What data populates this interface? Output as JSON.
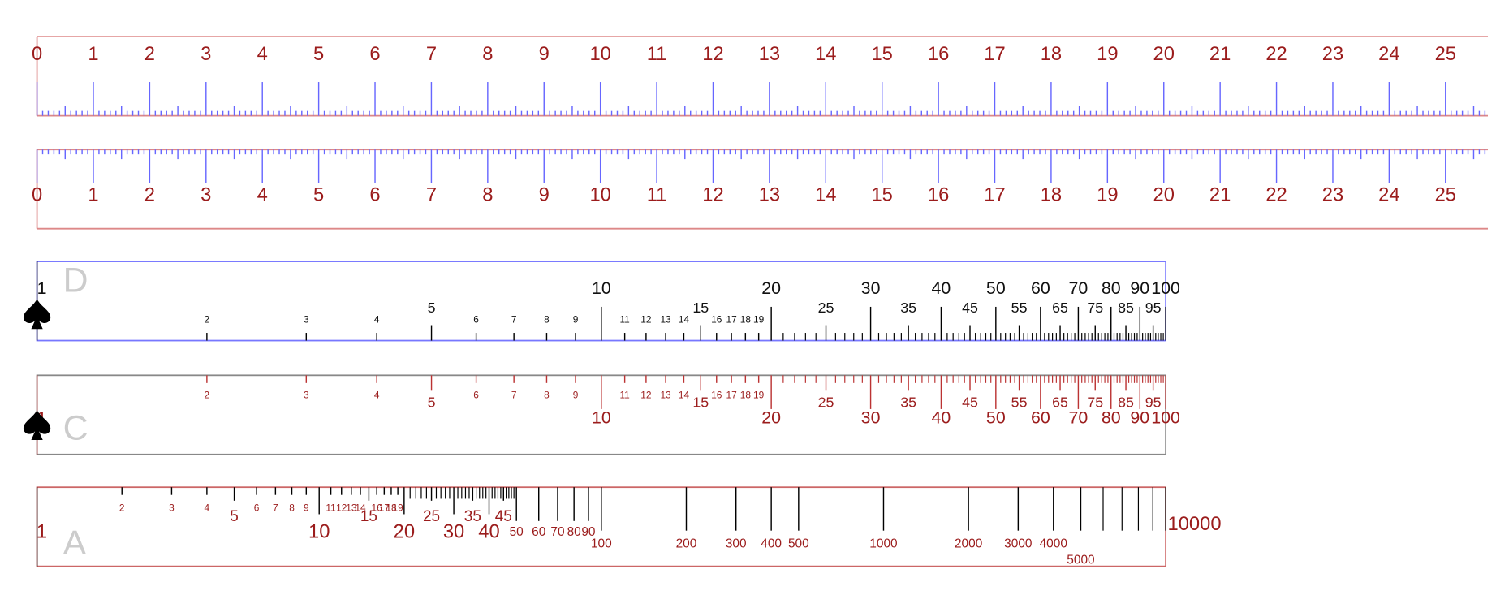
{
  "rulers": [
    {
      "labels": [
        "0",
        "1",
        "2",
        "3",
        "4",
        "5",
        "6",
        "7",
        "8",
        "9",
        "10",
        "11",
        "12",
        "13",
        "14",
        "15",
        "16",
        "17",
        "18",
        "19",
        "20",
        "21",
        "22",
        "23",
        "24",
        "25"
      ]
    },
    {
      "labels": [
        "0",
        "1",
        "2",
        "3",
        "4",
        "5",
        "6",
        "7",
        "8",
        "9",
        "10",
        "11",
        "12",
        "13",
        "14",
        "15",
        "16",
        "17",
        "18",
        "19",
        "20",
        "21",
        "22",
        "23",
        "24",
        "25"
      ]
    }
  ],
  "scales": [
    {
      "letter": "D",
      "large": [
        "1",
        "10",
        "20",
        "30",
        "40",
        "50",
        "60",
        "70",
        "80",
        "90",
        "100"
      ],
      "medium": [
        "5",
        "15",
        "25",
        "35",
        "45",
        "55",
        "65",
        "75",
        "85",
        "95"
      ],
      "small": [
        "2",
        "3",
        "4",
        "6",
        "7",
        "8",
        "9",
        "11",
        "12",
        "13",
        "14",
        "16",
        "17",
        "18",
        "19"
      ]
    },
    {
      "letter": "C",
      "large": [
        "1",
        "10",
        "20",
        "30",
        "40",
        "50",
        "60",
        "70",
        "80",
        "90",
        "100"
      ],
      "medium": [
        "5",
        "15",
        "25",
        "35",
        "45",
        "55",
        "65",
        "75",
        "85",
        "95"
      ],
      "small": [
        "2",
        "3",
        "4",
        "6",
        "7",
        "8",
        "9",
        "11",
        "12",
        "13",
        "14",
        "16",
        "17",
        "18",
        "19"
      ]
    },
    {
      "letter": "A",
      "large": [
        "1",
        "10",
        "20",
        "30",
        "40"
      ],
      "medium": [
        "5",
        "15",
        "25",
        "35",
        "45"
      ],
      "small": [
        "2",
        "3",
        "4",
        "6",
        "7",
        "8",
        "9",
        "11",
        "12",
        "13",
        "14",
        "16",
        "17",
        "18",
        "19"
      ],
      "tens": [
        "50",
        "60",
        "70",
        "80",
        "90"
      ],
      "hundreds": [
        "100",
        "200",
        "300",
        "400",
        "500",
        "1000",
        "2000",
        "3000",
        "4000"
      ],
      "lowered": [
        "5000"
      ],
      "end": [
        "10000"
      ]
    }
  ]
}
